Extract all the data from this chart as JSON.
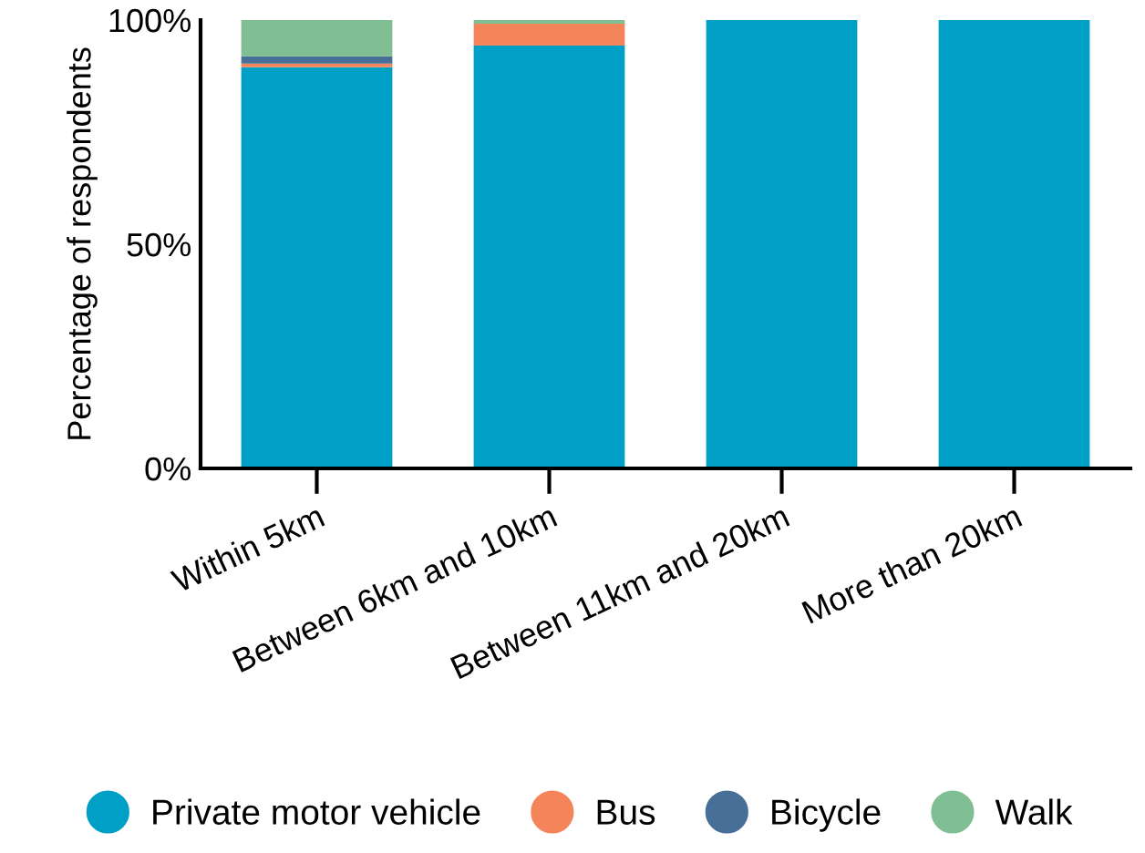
{
  "chart_data": {
    "type": "bar",
    "stacked": true,
    "ylabel": "Percentage of respondents",
    "categories": [
      "Within 5km",
      "Between 6km and 10km",
      "Between 11km and 20km",
      "More than 20km"
    ],
    "series": [
      {
        "name": "Private motor vehicle",
        "color": "#009fc6",
        "values": [
          89.5,
          94.3,
          100,
          100
        ]
      },
      {
        "name": "Bus",
        "color": "#f4845a",
        "values": [
          0.8,
          4.9,
          0,
          0
        ]
      },
      {
        "name": "Bicycle",
        "color": "#476f97",
        "values": [
          1.6,
          0,
          0,
          0
        ]
      },
      {
        "name": "Walk",
        "color": "#80bf93",
        "values": [
          8.1,
          0.8,
          0,
          0
        ]
      }
    ],
    "ylim": [
      0,
      100
    ],
    "yticks": [
      {
        "value": 0,
        "label": "0%"
      },
      {
        "value": 50,
        "label": "50%"
      },
      {
        "value": 100,
        "label": "100%"
      }
    ],
    "grid": false,
    "legend": "bottom",
    "marker": "circle"
  }
}
